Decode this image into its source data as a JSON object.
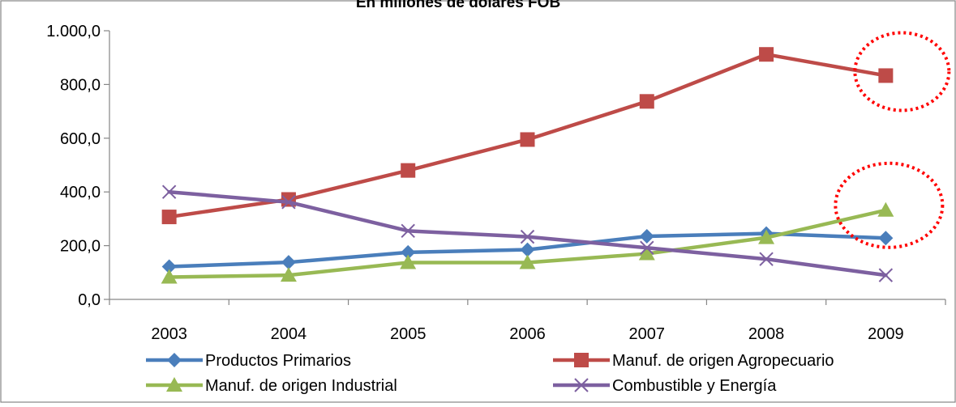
{
  "chart_data": {
    "type": "line",
    "title": "En millones de dólares FOB",
    "xlabel": "",
    "ylabel": "",
    "categories": [
      "2003",
      "2004",
      "2005",
      "2006",
      "2007",
      "2008",
      "2009"
    ],
    "ylim": [
      0,
      1000
    ],
    "y_ticks": [
      "0,0",
      "200,0",
      "400,0",
      "600,0",
      "800,0",
      "1.000,0"
    ],
    "grid": false,
    "legend_position": "bottom",
    "series": [
      {
        "name": "Productos Primarios",
        "color": "#4a7ebb",
        "marker": "diamond-icon",
        "values": [
          122,
          138,
          175,
          185,
          235,
          245,
          228
        ]
      },
      {
        "name": "Manuf. de origen Agropecuario",
        "color": "#be4b48",
        "marker": "square-icon",
        "values": [
          307,
          372,
          480,
          595,
          737,
          912,
          833
        ]
      },
      {
        "name": "Manuf. de origen Industrial",
        "color": "#98b954",
        "marker": "triangle-icon",
        "values": [
          83,
          90,
          137,
          137,
          170,
          230,
          332
        ]
      },
      {
        "name": "Combustible y Energía",
        "color": "#7d60a0",
        "marker": "x-icon",
        "values": [
          400,
          362,
          255,
          233,
          192,
          150,
          90
        ]
      }
    ],
    "annotations": [
      {
        "type": "dashed-ellipse-icon",
        "color": "#ff0000",
        "category": "2009",
        "series": "Manuf. de origen Agropecuario"
      },
      {
        "type": "dashed-ellipse-icon",
        "color": "#ff0000",
        "category": "2009",
        "series": "Manuf. de origen Industrial"
      }
    ]
  }
}
